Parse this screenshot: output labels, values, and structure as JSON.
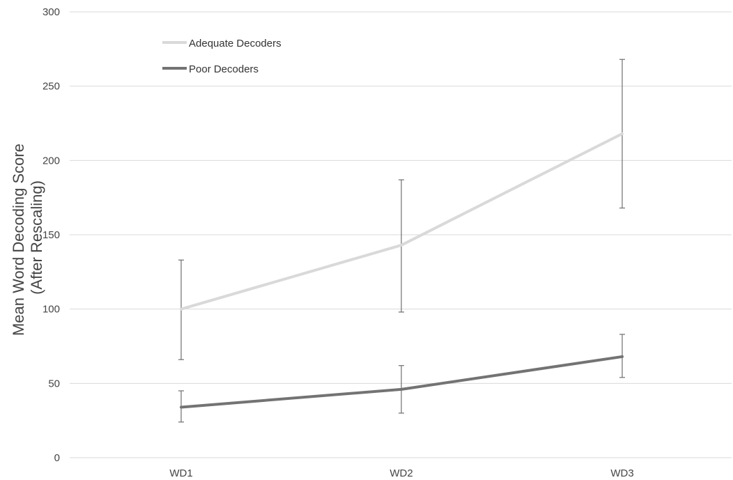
{
  "chart_data": {
    "type": "line",
    "title": "",
    "xlabel": "",
    "ylabel": [
      "Mean Word Decoding Score",
      "(After Rescaling)"
    ],
    "categories": [
      "WD1",
      "WD2",
      "WD3"
    ],
    "ylim": [
      0,
      300
    ],
    "yticks": [
      0,
      50,
      100,
      150,
      200,
      250,
      300
    ],
    "grid": true,
    "legend_position": "top-left",
    "series": [
      {
        "name": "Adequate Decoders",
        "color": "#d9d9d9",
        "values": [
          100,
          143,
          218
        ],
        "error_low": [
          66,
          98,
          168
        ],
        "error_high": [
          133,
          187,
          268
        ]
      },
      {
        "name": "Poor Decoders",
        "color": "#737373",
        "values": [
          34,
          46,
          68
        ],
        "error_low": [
          24,
          30,
          54
        ],
        "error_high": [
          45,
          62,
          83
        ]
      }
    ]
  }
}
